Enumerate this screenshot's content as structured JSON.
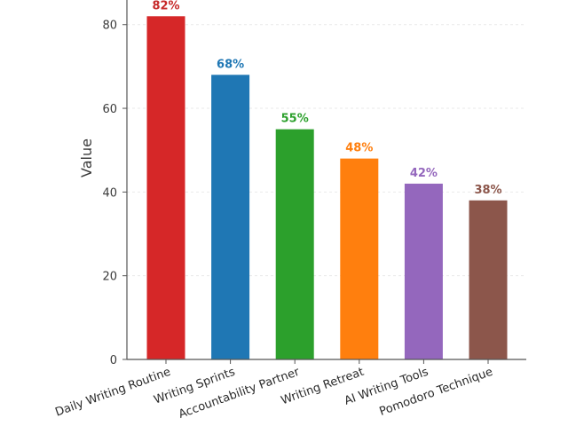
{
  "chart_data": {
    "type": "bar",
    "title": "",
    "xlabel": "",
    "ylabel": "Value",
    "ylim": [
      0,
      88
    ],
    "yticks": [
      0,
      20,
      40,
      60,
      80
    ],
    "grid": true,
    "categories": [
      "Daily Writing Routine",
      "Writing Sprints",
      "Accountability Partner",
      "Writing Retreat",
      "AI Writing Tools",
      "Pomodoro Technique"
    ],
    "values": [
      82,
      68,
      55,
      48,
      42,
      38
    ],
    "value_labels": [
      "82%",
      "68%",
      "55%",
      "48%",
      "42%",
      "38%"
    ],
    "colors": [
      "#d62728",
      "#1f77b4",
      "#2ca02c",
      "#ff7f0e",
      "#9467bd",
      "#8c564b"
    ],
    "label_colors": [
      "#c62828",
      "#1f77b4",
      "#2ca02c",
      "#ff7f0e",
      "#9467bd",
      "#8c564b"
    ]
  }
}
